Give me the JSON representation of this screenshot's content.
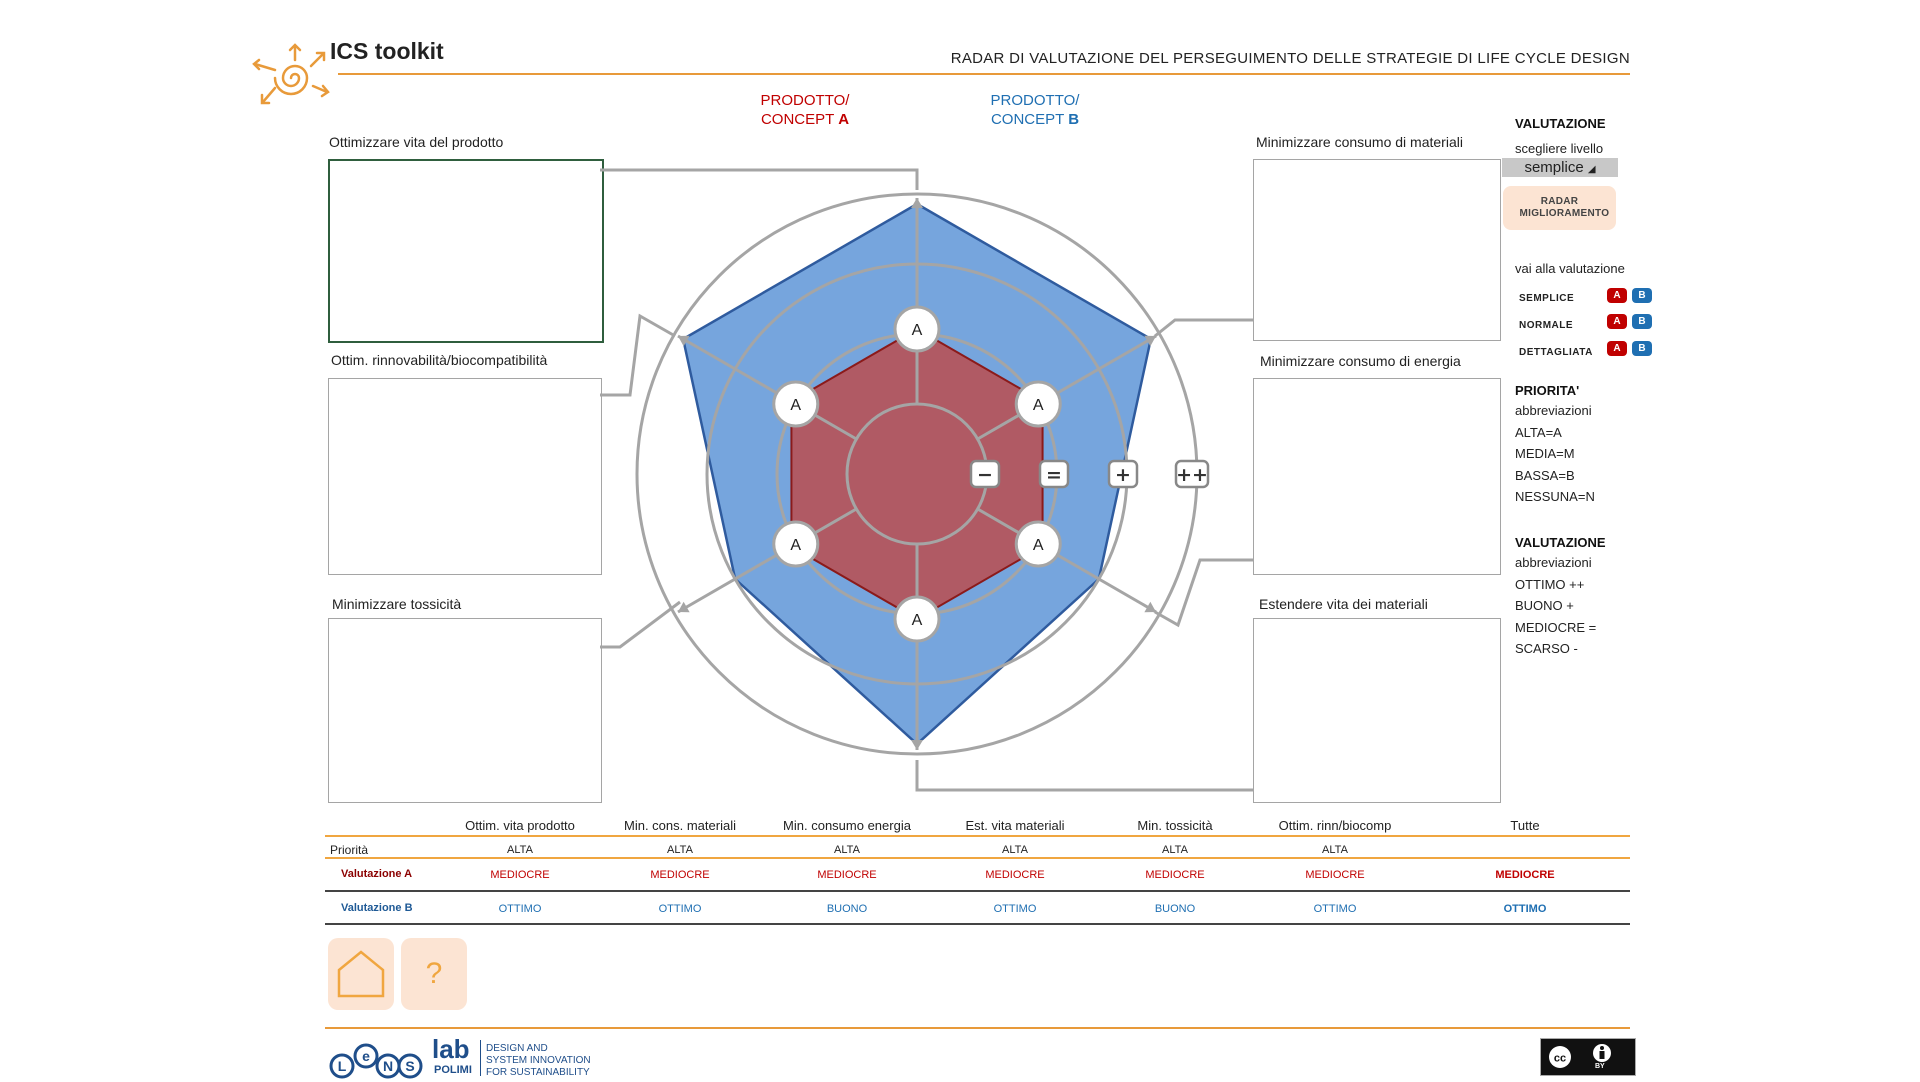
{
  "header": {
    "app_title": "ICS toolkit",
    "page_title": "RADAR DI VALUTAZIONE DEL PERSEGUIMENTO DELLE STRATEGIE DI LIFE CYCLE DESIGN"
  },
  "concepts": {
    "a_line1": "PRODOTTO/",
    "a_line2": "CONCEPT",
    "a_letter": "A",
    "b_line1": "PRODOTTO/",
    "b_line2": "CONCEPT",
    "b_letter": "B"
  },
  "boxes": {
    "vita_prodotto": "Ottimizzare vita del prodotto",
    "rinnovabilita": "Ottim. rinnovabilità/biocompatibilità",
    "tossicita": "Minimizzare tossicità",
    "materiali": "Minimizzare consumo di materiali",
    "energia": "Minimizzare consumo di energia",
    "vita_materiali": "Estendere vita dei materiali"
  },
  "radar": {
    "priority_markers": [
      "A",
      "A",
      "A",
      "A",
      "A",
      "A"
    ],
    "scale": [
      "−",
      "=",
      "+",
      "++"
    ],
    "concept_a_level": 2,
    "concept_b_levels": [
      4,
      4,
      3,
      4,
      3,
      4
    ],
    "color_a": "#b05a64",
    "color_b": "#76a5dd"
  },
  "sidebar": {
    "valutazione_title": "VALUTAZIONE",
    "scegliere_livello": "scegliere livello",
    "level_select_value": "semplice",
    "radar_button": "RADAR MIGLIORAMENTO",
    "vai_alla": "vai alla valutazione",
    "levels": [
      {
        "label": "SEMPLICE",
        "a": "A",
        "b": "B"
      },
      {
        "label": "NORMALE",
        "a": "A",
        "b": "B"
      },
      {
        "label": "DETTAGLIATA",
        "a": "A",
        "b": "B"
      }
    ],
    "priorita_title": "PRIORITA'",
    "priorita_abbr_label": "abbreviazioni",
    "priorita_items": [
      "ALTA=A",
      "MEDIA=M",
      "BASSA=B",
      "NESSUNA=N"
    ],
    "valutazione2_title": "VALUTAZIONE",
    "valutazione_abbr_label": "abbreviazioni",
    "valutazione_items": [
      "OTTIMO ++",
      "BUONO +",
      "MEDIOCRE =",
      "SCARSO -"
    ]
  },
  "table": {
    "columns": [
      "Ottim. vita prodotto",
      "Min. cons. materiali",
      "Min. consumo energia",
      "Est. vita materiali",
      "Min. tossicità",
      "Ottim. rinn/biocomp",
      "Tutte"
    ],
    "priority_label": "Priorità",
    "priority": [
      "ALTA",
      "ALTA",
      "ALTA",
      "ALTA",
      "ALTA",
      "ALTA"
    ],
    "val_a_label": "Valutazione A",
    "val_a": [
      "MEDIOCRE",
      "MEDIOCRE",
      "MEDIOCRE",
      "MEDIOCRE",
      "MEDIOCRE",
      "MEDIOCRE",
      "MEDIOCRE"
    ],
    "val_b_label": "Valutazione B",
    "val_b": [
      "OTTIMO",
      "OTTIMO",
      "BUONO",
      "OTTIMO",
      "BUONO",
      "OTTIMO",
      "OTTIMO"
    ]
  },
  "nav": {
    "help_glyph": "?"
  },
  "footer": {
    "lens_word": "lab",
    "polimi": "POLIMI",
    "tag1": "DESIGN AND",
    "tag2": "SYSTEM INNOVATION",
    "tag3": "FOR SUSTAINABILITY",
    "cc_by": "BY"
  }
}
